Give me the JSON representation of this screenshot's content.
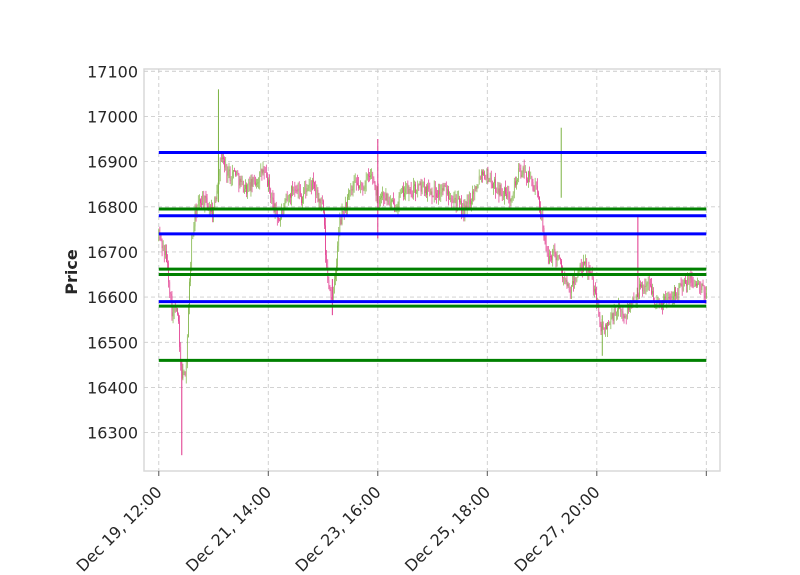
{
  "chart_data": {
    "type": "candlestick",
    "ylabel": "Price",
    "ylim": [
      16215,
      17105
    ],
    "yticks": [
      16300,
      16400,
      16500,
      16600,
      16700,
      16800,
      16900,
      17000,
      17100
    ],
    "xlim": [
      -0.27,
      10.25
    ],
    "xticks": [
      {
        "pos": 0,
        "label": "Dec 19, 12:00"
      },
      {
        "pos": 2,
        "label": "Dec 21, 14:00"
      },
      {
        "pos": 4,
        "label": "Dec 23, 16:00"
      },
      {
        "pos": 6,
        "label": "Dec 25, 18:00"
      },
      {
        "pos": 8,
        "label": "Dec 27, 20:00"
      },
      {
        "pos": 10,
        "label": ""
      }
    ],
    "grid": true,
    "up_color": "#7cb342",
    "down_color": "#e0338a",
    "price_path": [
      [
        0.0,
        16740
      ],
      [
        0.05,
        16720
      ],
      [
        0.1,
        16700
      ],
      [
        0.15,
        16680
      ],
      [
        0.2,
        16620
      ],
      [
        0.25,
        16560
      ],
      [
        0.3,
        16570
      ],
      [
        0.35,
        16560
      ],
      [
        0.4,
        16440
      ],
      [
        0.45,
        16420
      ],
      [
        0.5,
        16450
      ],
      [
        0.55,
        16600
      ],
      [
        0.6,
        16720
      ],
      [
        0.65,
        16770
      ],
      [
        0.7,
        16800
      ],
      [
        0.8,
        16820
      ],
      [
        0.9,
        16800
      ],
      [
        1.0,
        16790
      ],
      [
        1.05,
        16830
      ],
      [
        1.1,
        16880
      ],
      [
        1.15,
        16920
      ],
      [
        1.2,
        16890
      ],
      [
        1.3,
        16870
      ],
      [
        1.4,
        16880
      ],
      [
        1.5,
        16850
      ],
      [
        1.6,
        16840
      ],
      [
        1.7,
        16850
      ],
      [
        1.8,
        16860
      ],
      [
        1.9,
        16880
      ],
      [
        2.0,
        16850
      ],
      [
        2.1,
        16800
      ],
      [
        2.2,
        16770
      ],
      [
        2.3,
        16800
      ],
      [
        2.4,
        16830
      ],
      [
        2.5,
        16850
      ],
      [
        2.6,
        16820
      ],
      [
        2.7,
        16840
      ],
      [
        2.8,
        16850
      ],
      [
        2.9,
        16820
      ],
      [
        3.0,
        16800
      ],
      [
        3.02,
        16760
      ],
      [
        3.05,
        16690
      ],
      [
        3.08,
        16640
      ],
      [
        3.12,
        16620
      ],
      [
        3.16,
        16600
      ],
      [
        3.2,
        16620
      ],
      [
        3.25,
        16680
      ],
      [
        3.3,
        16760
      ],
      [
        3.4,
        16800
      ],
      [
        3.5,
        16830
      ],
      [
        3.6,
        16850
      ],
      [
        3.7,
        16840
      ],
      [
        3.8,
        16860
      ],
      [
        3.9,
        16870
      ],
      [
        4.0,
        16820
      ],
      [
        4.1,
        16830
      ],
      [
        4.2,
        16810
      ],
      [
        4.3,
        16800
      ],
      [
        4.4,
        16820
      ],
      [
        4.5,
        16840
      ],
      [
        4.6,
        16830
      ],
      [
        4.7,
        16840
      ],
      [
        4.8,
        16845
      ],
      [
        4.9,
        16840
      ],
      [
        5.0,
        16835
      ],
      [
        5.1,
        16830
      ],
      [
        5.2,
        16840
      ],
      [
        5.3,
        16830
      ],
      [
        5.4,
        16820
      ],
      [
        5.5,
        16800
      ],
      [
        5.6,
        16790
      ],
      [
        5.7,
        16820
      ],
      [
        5.8,
        16850
      ],
      [
        5.9,
        16880
      ],
      [
        6.0,
        16870
      ],
      [
        6.1,
        16850
      ],
      [
        6.2,
        16840
      ],
      [
        6.3,
        16830
      ],
      [
        6.4,
        16820
      ],
      [
        6.5,
        16850
      ],
      [
        6.6,
        16880
      ],
      [
        6.7,
        16870
      ],
      [
        6.8,
        16860
      ],
      [
        6.9,
        16830
      ],
      [
        7.0,
        16780
      ],
      [
        7.05,
        16720
      ],
      [
        7.1,
        16680
      ],
      [
        7.2,
        16700
      ],
      [
        7.3,
        16690
      ],
      [
        7.4,
        16640
      ],
      [
        7.5,
        16610
      ],
      [
        7.6,
        16640
      ],
      [
        7.7,
        16660
      ],
      [
        7.8,
        16670
      ],
      [
        7.9,
        16640
      ],
      [
        8.0,
        16600
      ],
      [
        8.05,
        16550
      ],
      [
        8.1,
        16520
      ],
      [
        8.2,
        16540
      ],
      [
        8.3,
        16560
      ],
      [
        8.4,
        16570
      ],
      [
        8.5,
        16560
      ],
      [
        8.6,
        16580
      ],
      [
        8.7,
        16600
      ],
      [
        8.8,
        16620
      ],
      [
        8.9,
        16630
      ],
      [
        9.0,
        16620
      ],
      [
        9.05,
        16600
      ],
      [
        9.1,
        16580
      ],
      [
        9.2,
        16590
      ],
      [
        9.3,
        16600
      ],
      [
        9.4,
        16610
      ],
      [
        9.5,
        16620
      ],
      [
        9.6,
        16625
      ],
      [
        9.7,
        16640
      ],
      [
        9.8,
        16630
      ],
      [
        9.9,
        16620
      ],
      [
        10.0,
        16600
      ]
    ],
    "wick_spikes": [
      {
        "x": 0.42,
        "low": 16250,
        "high": 16460
      },
      {
        "x": 1.09,
        "high": 17060,
        "low": 16810
      },
      {
        "x": 4.0,
        "high": 16950,
        "low": 16730
      },
      {
        "x": 7.35,
        "high": 16975,
        "low": 16820
      },
      {
        "x": 8.75,
        "high": 16780,
        "low": 16600
      },
      {
        "x": 8.1,
        "low": 16470,
        "high": 16560
      },
      {
        "x": 3.17,
        "low": 16560,
        "high": 16640
      }
    ],
    "hlines": [
      {
        "y": 16920,
        "color": "#0000ff"
      },
      {
        "y": 16780,
        "color": "#0000ff"
      },
      {
        "y": 16740,
        "color": "#0000ff"
      },
      {
        "y": 16590,
        "color": "#0000ff"
      },
      {
        "y": 16795,
        "color": "#008000"
      },
      {
        "y": 16662,
        "color": "#008000"
      },
      {
        "y": 16650,
        "color": "#008000"
      },
      {
        "y": 16580,
        "color": "#008000"
      },
      {
        "y": 16460,
        "color": "#008000"
      }
    ],
    "hline_span": [
      0,
      10
    ]
  }
}
